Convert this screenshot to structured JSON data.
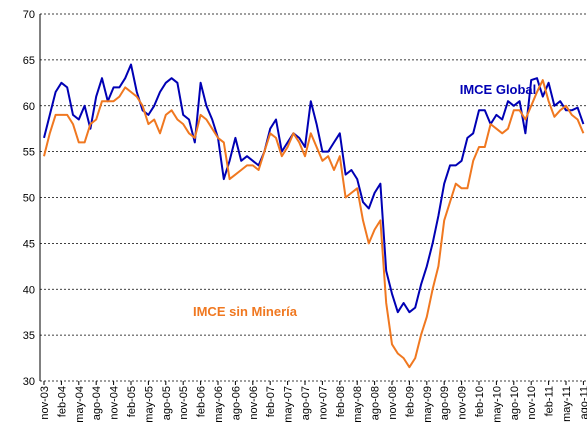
{
  "chart_data": {
    "type": "line",
    "categories": [
      "nov-03",
      null,
      null,
      "feb-04",
      null,
      null,
      "may-04",
      null,
      null,
      "ago-04",
      null,
      null,
      "nov-04",
      null,
      null,
      "feb-05",
      null,
      null,
      "may-05",
      null,
      null,
      "ago-05",
      null,
      null,
      "nov-05",
      null,
      null,
      "feb-06",
      null,
      null,
      "may-06",
      null,
      null,
      "ago-06",
      null,
      null,
      "nov-06",
      null,
      null,
      "feb-07",
      null,
      null,
      "may-07",
      null,
      null,
      "ago-07",
      null,
      null,
      "nov-07",
      null,
      null,
      "feb-08",
      null,
      null,
      "may-08",
      null,
      null,
      "ago-08",
      null,
      null,
      "nov-08",
      null,
      null,
      "feb-09",
      null,
      null,
      "may-09",
      null,
      null,
      "ago-09",
      null,
      null,
      "nov-09",
      null,
      null,
      "feb-10",
      null,
      null,
      "may-10",
      null,
      null,
      "ago-10",
      null,
      null,
      "nov-10",
      null,
      null,
      "feb-11",
      null,
      null,
      "may-11",
      null,
      null,
      "ago-11"
    ],
    "series": [
      {
        "name": "IMCE Global",
        "color": "#0000b4",
        "values": [
          56.5,
          59,
          61.5,
          62.5,
          62,
          59,
          58.5,
          60,
          57.5,
          61,
          63,
          60.5,
          62,
          62,
          63,
          64.5,
          61.5,
          59.5,
          59,
          60,
          61.5,
          62.5,
          63,
          62.5,
          59,
          58.5,
          56,
          62.5,
          60,
          58.5,
          56.5,
          52,
          54,
          56.5,
          54,
          54.5,
          54,
          53.5,
          55,
          57.5,
          58.5,
          55,
          56,
          57,
          56.5,
          55.5,
          60.5,
          58,
          55,
          55,
          56,
          57,
          52.5,
          53,
          52,
          49.5,
          48.8,
          50.5,
          51.5,
          42,
          39.5,
          37.5,
          38.5,
          37.5,
          38,
          40.5,
          42.5,
          45,
          48,
          51.5,
          53.5,
          53.5,
          54,
          56.5,
          57,
          59.5,
          59.5,
          58,
          59,
          58.5,
          60.5,
          60,
          60.5,
          57,
          62.8,
          63,
          61,
          62.5,
          60,
          60.5,
          59.5,
          59.5,
          59.8,
          58
        ]
      },
      {
        "name": "IMCE sin Minería",
        "color": "#f07820",
        "values": [
          54.5,
          57,
          59,
          59,
          59,
          58,
          56,
          56,
          58,
          58.5,
          60.5,
          60.5,
          60.5,
          61,
          62,
          61.5,
          61,
          60,
          58,
          58.5,
          57,
          59,
          59.5,
          58.5,
          58,
          57,
          56.5,
          59,
          58.5,
          57.5,
          56.5,
          56,
          52,
          52.5,
          53,
          53.5,
          53.5,
          53,
          55,
          57,
          56.5,
          54.5,
          55.5,
          57,
          56,
          54.5,
          57,
          55.5,
          54,
          54.5,
          53,
          54.5,
          50,
          50.5,
          51,
          47.5,
          45,
          46.5,
          47.5,
          38.5,
          34,
          33,
          32.5,
          31.5,
          32.5,
          35,
          37,
          40,
          42.5,
          47.5,
          49.5,
          51.5,
          51,
          51,
          54,
          55.5,
          55.5,
          58,
          57.5,
          57,
          57.5,
          59.5,
          59.5,
          58.5,
          60,
          61.5,
          62.8,
          60.5,
          58.8,
          59.5,
          60,
          59,
          58.5,
          57
        ]
      }
    ],
    "ylim": [
      30,
      70
    ],
    "yticks": [
      30,
      35,
      40,
      45,
      50,
      55,
      60,
      65,
      70
    ],
    "grid": true
  }
}
